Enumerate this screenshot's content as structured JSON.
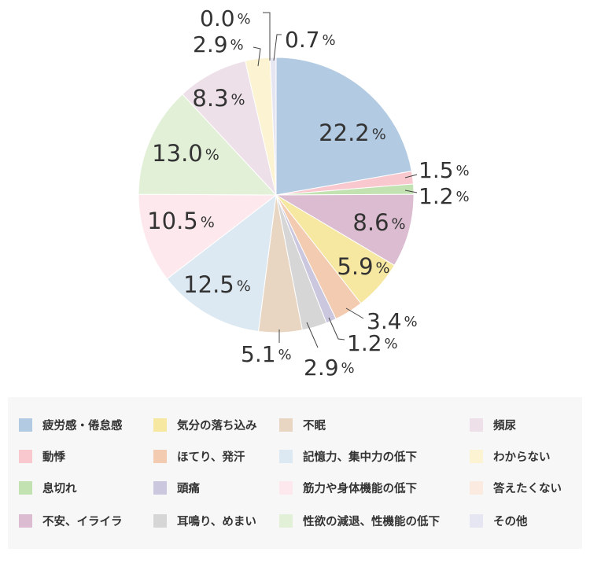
{
  "chart_data": {
    "type": "pie",
    "unit": "%",
    "start": "top",
    "direction": "clockwise",
    "slices": [
      {
        "label": "疲労感・倦怠感",
        "value": 22.2,
        "display": "22.2",
        "color": "#b3cbe2"
      },
      {
        "label": "動悸",
        "value": 1.5,
        "display": "1.5",
        "color": "#f9c8cf"
      },
      {
        "label": "息切れ",
        "value": 1.2,
        "display": "1.2",
        "color": "#c3e2b1"
      },
      {
        "label": "不安、イライラ",
        "value": 8.6,
        "display": "8.6",
        "color": "#dbbcd0"
      },
      {
        "label": "気分の落ち込み",
        "value": 5.9,
        "display": "5.9",
        "color": "#f6e7a1"
      },
      {
        "label": "ほてり、発汗",
        "value": 3.4,
        "display": "3.4",
        "color": "#f3cbb0"
      },
      {
        "label": "頭痛",
        "value": 1.2,
        "display": "1.2",
        "color": "#cbc7df"
      },
      {
        "label": "耳鳴り、めまい",
        "value": 2.9,
        "display": "2.9",
        "color": "#d6d6d6"
      },
      {
        "label": "不眠",
        "value": 5.1,
        "display": "5.1",
        "color": "#e8d6c2"
      },
      {
        "label": "記憶力、集中力の低下",
        "value": 12.5,
        "display": "12.5",
        "color": "#dde9f2"
      },
      {
        "label": "筋力や身体機能の低下",
        "value": 10.5,
        "display": "10.5",
        "color": "#fde9ed"
      },
      {
        "label": "性欲の減退、性機能の低下",
        "value": 13.0,
        "display": "13.0",
        "color": "#e3f0d8"
      },
      {
        "label": "頻尿",
        "value": 8.3,
        "display": "8.3",
        "color": "#ede0e8"
      },
      {
        "label": "わからない",
        "value": 2.9,
        "display": "2.9",
        "color": "#fcf3d3"
      },
      {
        "label": "答えたくない",
        "value": 0.0,
        "display": "0.0",
        "color": "#fbeae0"
      },
      {
        "label": "その他",
        "value": 0.7,
        "display": "0.7",
        "color": "#e6e6f2"
      }
    ]
  },
  "legend": {
    "items": [
      {
        "label": "疲労感・倦怠感",
        "color": "#b3cbe2"
      },
      {
        "label": "動悸",
        "color": "#f9c8cf"
      },
      {
        "label": "息切れ",
        "color": "#c3e2b1"
      },
      {
        "label": "不安、イライラ",
        "color": "#dbbcd0"
      },
      {
        "label": "気分の落ち込み",
        "color": "#f6e7a1"
      },
      {
        "label": "ほてり、発汗",
        "color": "#f3cbb0"
      },
      {
        "label": "頭痛",
        "color": "#cbc7df"
      },
      {
        "label": "耳鳴り、めまい",
        "color": "#d6d6d6"
      },
      {
        "label": "不眠",
        "color": "#e8d6c2"
      },
      {
        "label": "記憶力、集中力の低下",
        "color": "#dde9f2"
      },
      {
        "label": "筋力や身体機能の低下",
        "color": "#fde9ed"
      },
      {
        "label": "性欲の減退、性機能の低下",
        "color": "#e3f0d8"
      },
      {
        "label": "頻尿",
        "color": "#ede0e8"
      },
      {
        "label": "わからない",
        "color": "#fcf3d3"
      },
      {
        "label": "答えたくない",
        "color": "#fbeae0"
      },
      {
        "label": "その他",
        "color": "#e6e6f2"
      }
    ]
  }
}
